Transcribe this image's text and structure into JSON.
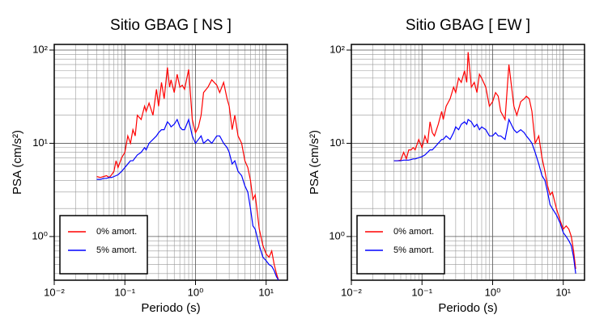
{
  "chart_data": [
    {
      "type": "line",
      "title": "Sitio GBAG [ NS ]",
      "x_label": "Periodo (s)",
      "y_label": "PSA (cm/s²)",
      "xscale": "log",
      "yscale": "log",
      "grid": true,
      "minor_grid": true,
      "legend": "lower left",
      "xlim": [
        0.01,
        20
      ],
      "ylim": [
        0.34,
        115
      ],
      "xticks": [
        {
          "value": 0.01,
          "label": "10⁻²"
        },
        {
          "value": 0.1,
          "label": "10⁻¹"
        },
        {
          "value": 1,
          "label": "10⁰"
        },
        {
          "value": 10,
          "label": "10¹"
        }
      ],
      "yticks": [
        {
          "value": 1,
          "label": "10⁰"
        },
        {
          "value": 10,
          "label": "10¹"
        },
        {
          "value": 100,
          "label": "10²"
        }
      ],
      "x": [
        0.04,
        0.045,
        0.05,
        0.055,
        0.06,
        0.065,
        0.07,
        0.075,
        0.08,
        0.09,
        0.1,
        0.11,
        0.12,
        0.13,
        0.14,
        0.15,
        0.17,
        0.19,
        0.2,
        0.22,
        0.25,
        0.28,
        0.3,
        0.33,
        0.36,
        0.4,
        0.43,
        0.45,
        0.5,
        0.55,
        0.6,
        0.65,
        0.7,
        0.8,
        0.9,
        1.0,
        1.1,
        1.2,
        1.3,
        1.5,
        1.7,
        2.0,
        2.2,
        2.5,
        2.8,
        3.0,
        3.3,
        3.6,
        4.0,
        4.5,
        5.0,
        5.5,
        6.0,
        6.5,
        7.0,
        8.0,
        9.0,
        10,
        11,
        12,
        13,
        14,
        15
      ],
      "series": [
        {
          "name": "0% amort.",
          "color": "#ff0000",
          "values": [
            4.4,
            4.3,
            4.4,
            4.5,
            4.3,
            4.6,
            5,
            6.5,
            5.5,
            7,
            8,
            12,
            10,
            14,
            12,
            20,
            18,
            25,
            22,
            27,
            20,
            38,
            25,
            45,
            30,
            65,
            40,
            48,
            35,
            55,
            40,
            42,
            38,
            62,
            18,
            13,
            15,
            20,
            35,
            40,
            48,
            42,
            35,
            45,
            30,
            25,
            14,
            20,
            12,
            10,
            6.5,
            5.5,
            4,
            2.5,
            2.8,
            1.2,
            0.8,
            0.65,
            0.6,
            0.7,
            0.5,
            0.4,
            0.34
          ]
        },
        {
          "name": "5% amort.",
          "color": "#0000ff",
          "values": [
            4.1,
            4.1,
            4.2,
            4.2,
            4.3,
            4.3,
            4.4,
            4.5,
            4.6,
            5,
            5.5,
            6,
            6.5,
            6.5,
            7,
            7.5,
            8,
            9,
            8.5,
            10,
            11,
            12,
            13,
            14,
            14,
            17,
            16,
            15,
            16,
            18,
            15,
            14,
            14,
            18,
            12,
            10,
            11,
            12,
            10,
            11,
            10,
            12,
            12,
            10,
            9,
            8,
            6,
            6.5,
            5,
            4.5,
            3.5,
            3,
            2,
            1.3,
            1.2,
            0.8,
            0.6,
            0.55,
            0.5,
            0.48,
            0.43,
            0.37,
            0.34
          ]
        }
      ]
    },
    {
      "type": "line",
      "title": "Sitio GBAG [ EW ]",
      "x_label": "Periodo (s)",
      "y_label": "PSA (cm/s²)",
      "xscale": "log",
      "yscale": "log",
      "grid": true,
      "minor_grid": true,
      "legend": "lower left",
      "xlim": [
        0.01,
        20
      ],
      "ylim": [
        0.34,
        115
      ],
      "xticks": [
        {
          "value": 0.01,
          "label": "10⁻²"
        },
        {
          "value": 0.1,
          "label": "10⁻¹"
        },
        {
          "value": 1,
          "label": "10⁰"
        },
        {
          "value": 10,
          "label": "10¹"
        }
      ],
      "yticks": [
        {
          "value": 1,
          "label": "10⁰"
        },
        {
          "value": 10,
          "label": "10¹"
        },
        {
          "value": 100,
          "label": "10²"
        }
      ],
      "x": [
        0.04,
        0.045,
        0.05,
        0.055,
        0.06,
        0.065,
        0.07,
        0.075,
        0.08,
        0.09,
        0.1,
        0.11,
        0.12,
        0.13,
        0.14,
        0.15,
        0.17,
        0.19,
        0.2,
        0.22,
        0.25,
        0.28,
        0.3,
        0.33,
        0.36,
        0.4,
        0.43,
        0.45,
        0.5,
        0.55,
        0.6,
        0.65,
        0.7,
        0.8,
        0.9,
        1.0,
        1.1,
        1.2,
        1.3,
        1.5,
        1.7,
        2.0,
        2.2,
        2.5,
        2.8,
        3.0,
        3.3,
        3.6,
        4.0,
        4.5,
        5.0,
        5.5,
        6.0,
        6.5,
        7.0,
        8.0,
        9.0,
        10,
        11,
        12,
        13,
        14,
        15
      ],
      "series": [
        {
          "name": "0% amort.",
          "color": "#ff0000",
          "values": [
            6.5,
            6.5,
            6.6,
            8,
            6.8,
            8.5,
            8.5,
            9,
            8.5,
            11,
            9,
            12,
            10,
            17,
            13,
            12,
            16,
            22,
            18,
            25,
            30,
            40,
            35,
            50,
            45,
            60,
            45,
            95,
            40,
            45,
            35,
            55,
            50,
            40,
            25,
            28,
            35,
            32,
            22,
            18,
            70,
            25,
            20,
            28,
            30,
            32,
            30,
            22,
            10,
            12,
            7,
            5,
            3.5,
            2.8,
            3,
            2,
            1.5,
            1.2,
            1.3,
            1.2,
            1,
            0.7,
            0.45
          ]
        },
        {
          "name": "5% amort.",
          "color": "#0000ff",
          "values": [
            6.5,
            6.5,
            6.5,
            6.6,
            6.6,
            6.6,
            6.7,
            6.8,
            6.8,
            7,
            7.2,
            7.5,
            8,
            8.5,
            8.5,
            9,
            10,
            11,
            11,
            12,
            11,
            13,
            15,
            14,
            16,
            17,
            16,
            18,
            17,
            15,
            16,
            14,
            15,
            14,
            12,
            12,
            13,
            12,
            12,
            11,
            18,
            14,
            13,
            14,
            13,
            12,
            11,
            10,
            8,
            6,
            4.5,
            4,
            3,
            2.2,
            2,
            1.7,
            1.4,
            1.1,
            1.0,
            0.9,
            0.8,
            0.6,
            0.4
          ]
        }
      ]
    }
  ]
}
